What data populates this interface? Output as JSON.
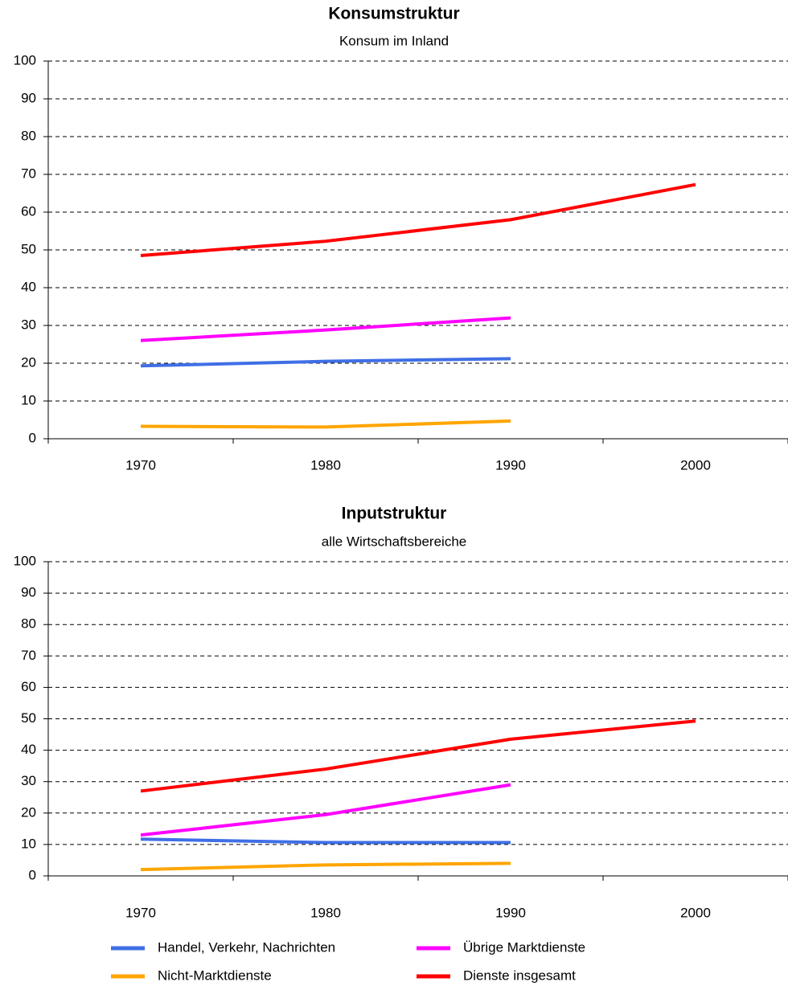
{
  "chart_data": [
    {
      "type": "line",
      "title": "Konsumstruktur",
      "subtitle": "Konsum im Inland",
      "categories": [
        "1970",
        "1980",
        "1990",
        "2000"
      ],
      "ylim": [
        0,
        100
      ],
      "yticks": [
        0,
        10,
        20,
        30,
        40,
        50,
        60,
        70,
        80,
        90,
        100
      ],
      "grid": true,
      "legend": "bottom",
      "series": [
        {
          "name": "Handel, Verkehr, Nachrichten",
          "color": "#3f6fe6",
          "values": [
            19.3,
            20.5,
            21.2,
            null
          ]
        },
        {
          "name": "Übrige Marktdienste",
          "color": "#ff00ff",
          "values": [
            26,
            28.8,
            32,
            null
          ]
        },
        {
          "name": "Nicht-Marktdienste",
          "color": "#ffa500",
          "values": [
            3.3,
            3.1,
            4.7,
            null
          ]
        },
        {
          "name": "Dienste insgesamt",
          "color": "#ff0000",
          "values": [
            48.5,
            52.3,
            58,
            67.3
          ]
        }
      ]
    },
    {
      "type": "line",
      "title": "Inputstruktur",
      "subtitle": "alle Wirtschaftsbereiche",
      "categories": [
        "1970",
        "1980",
        "1990",
        "2000"
      ],
      "ylim": [
        0,
        100
      ],
      "yticks": [
        0,
        10,
        20,
        30,
        40,
        50,
        60,
        70,
        80,
        90,
        100
      ],
      "grid": true,
      "series": [
        {
          "color": "#3f6fe6",
          "values": [
            11.7,
            10.6,
            10.6,
            null
          ]
        },
        {
          "color": "#ff00ff",
          "values": [
            13,
            19.5,
            29,
            null
          ]
        },
        {
          "color": "#ffa500",
          "values": [
            2,
            3.5,
            4,
            null
          ]
        },
        {
          "color": "#ff0000",
          "values": [
            27,
            34,
            43.5,
            49.3
          ]
        }
      ]
    }
  ]
}
